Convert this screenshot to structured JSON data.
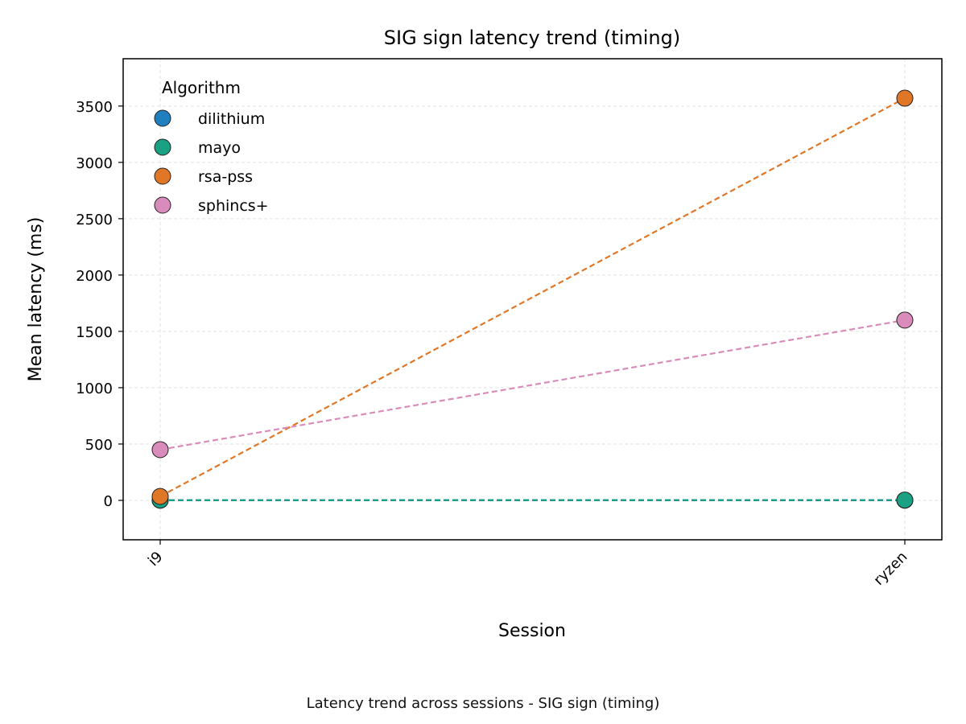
{
  "chart_data": {
    "type": "line",
    "title": "SIG sign latency trend (timing)",
    "xlabel": "Session",
    "ylabel": "Mean latency (ms)",
    "categories": [
      "i9",
      "ryzen"
    ],
    "ylim": [
      -350,
      3920
    ],
    "yticks": [
      0,
      500,
      1000,
      1500,
      2000,
      2500,
      3000,
      3500
    ],
    "grid": true,
    "line_style": "dashed",
    "legend": {
      "title": "Algorithm",
      "position": "top-left"
    },
    "series": [
      {
        "name": "dilithium",
        "color": "#1f7fbf",
        "values": [
          1,
          1
        ]
      },
      {
        "name": "mayo",
        "color": "#1aa083",
        "values": [
          2,
          3
        ]
      },
      {
        "name": "rsa-pss",
        "color": "#e07727",
        "values": [
          35,
          3570
        ]
      },
      {
        "name": "sphincs+",
        "color": "#d98cbb",
        "values": [
          450,
          1600
        ]
      }
    ]
  },
  "caption": "Latency trend across sessions - SIG sign (timing)"
}
